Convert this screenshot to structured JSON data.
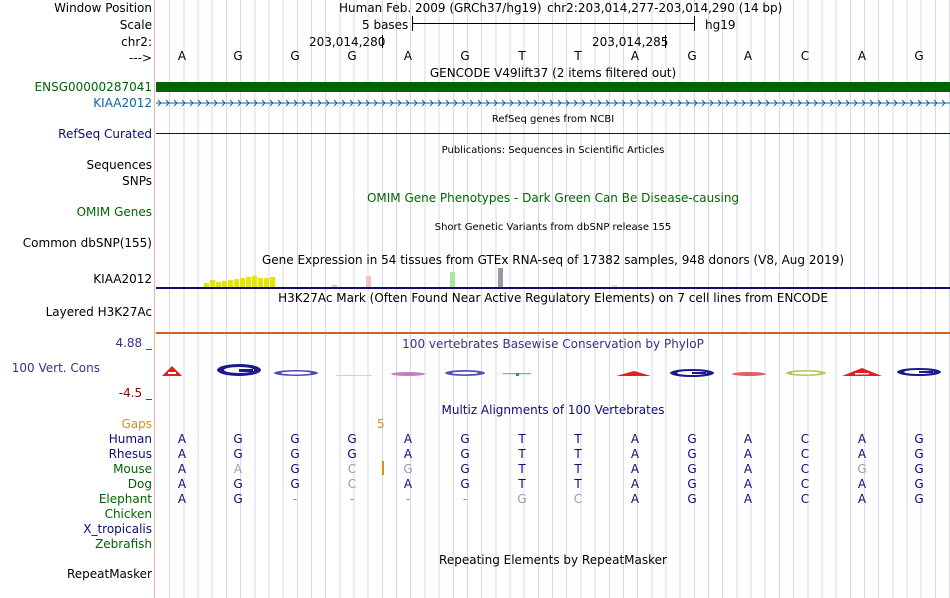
{
  "labels": {
    "window_position": "Window Position",
    "scale": "Scale",
    "chr": "chr2:",
    "arrow": "--->",
    "ensg": "ENSG00000287041",
    "kiaa": "KIAA2012",
    "refseq": "RefSeq Curated",
    "sequences": "Sequences",
    "snps": "SNPs",
    "omim": "OMIM Genes",
    "dbsnp": "Common dbSNP(155)",
    "gtex": "KIAA2012",
    "h3k27ac": "Layered H3K27Ac",
    "cons_max": "4.88 _",
    "cons": "100 Vert. Cons",
    "cons_min": "-4.5 _",
    "gaps": "Gaps",
    "repeatmasker": "RepeatMasker"
  },
  "header": {
    "assembly": "Human Feb. 2009 (GRCh37/hg19)",
    "position": "chr2:203,014,277-203,014,290 (14 bp)",
    "scale_label": "5 bases",
    "scale_db": "hg19",
    "coord_1": "203,014,280",
    "coord_2": "203,014,285"
  },
  "bases": [
    "A",
    "G",
    "G",
    "G",
    "A",
    "G",
    "T",
    "T",
    "A",
    "G",
    "A",
    "C",
    "A",
    "G"
  ],
  "track_titles": {
    "gencode": "GENCODE V49lift37 (2 items filtered out)",
    "refseq": "RefSeq genes from NCBI",
    "publications": "Publications: Sequences in Scientific Articles",
    "omim": "OMIM Gene Phenotypes - Dark Green Can Be Disease-causing",
    "dbsnp": "Short Genetic Variants from dbSNP release 155",
    "gtex": "Gene Expression in 54 tissues from GTEx RNA-seq of 17382 samples, 948 donors (V8, Aug 2019)",
    "h3k27ac": "H3K27Ac Mark (Often Found Near Active Regulatory Elements) on 7 cell lines from ENCODE",
    "phylop": "100 vertebrates Basewise Conservation by PhyloP",
    "multiz": "Multiz Alignments of 100 Vertebrates",
    "repeatmasker": "Repeating Elements by RepeatMasker"
  },
  "gaps_count": "5",
  "alignment": [
    {
      "species": "Human",
      "bases": [
        "A",
        "G",
        "G",
        "G",
        "A",
        "G",
        "T",
        "T",
        "A",
        "G",
        "A",
        "C",
        "A",
        "G"
      ]
    },
    {
      "species": "Rhesus",
      "bases": [
        "A",
        "G",
        "G",
        "G",
        "A",
        "G",
        "T",
        "T",
        "A",
        "G",
        "A",
        "C",
        "A",
        "G"
      ]
    },
    {
      "species": "Mouse",
      "bases": [
        "A",
        "A",
        "G",
        "C",
        "G",
        "G",
        "T",
        "T",
        "A",
        "G",
        "A",
        "C",
        "G",
        "G"
      ]
    },
    {
      "species": "Dog",
      "bases": [
        "A",
        "G",
        "G",
        "C",
        "A",
        "G",
        "T",
        "T",
        "A",
        "G",
        "A",
        "C",
        "A",
        "G"
      ]
    },
    {
      "species": "Elephant",
      "bases": [
        "A",
        "G",
        "-",
        "-",
        "-",
        "-",
        "G",
        "C",
        "A",
        "G",
        "A",
        "C",
        "A",
        "G"
      ]
    },
    {
      "species": "Chicken",
      "bases": []
    },
    {
      "species": "X_tropicalis",
      "bases": []
    },
    {
      "species": "Zebrafish",
      "bases": []
    }
  ],
  "colors": {
    "ensg": "#006400",
    "kiaa": "#0c64a4",
    "refseq": "#0c0c78",
    "omim": "#006600",
    "cons": "#333388",
    "gaps": "#d9930f",
    "species_primate": "#0c0c78",
    "species_other": "#006400"
  }
}
